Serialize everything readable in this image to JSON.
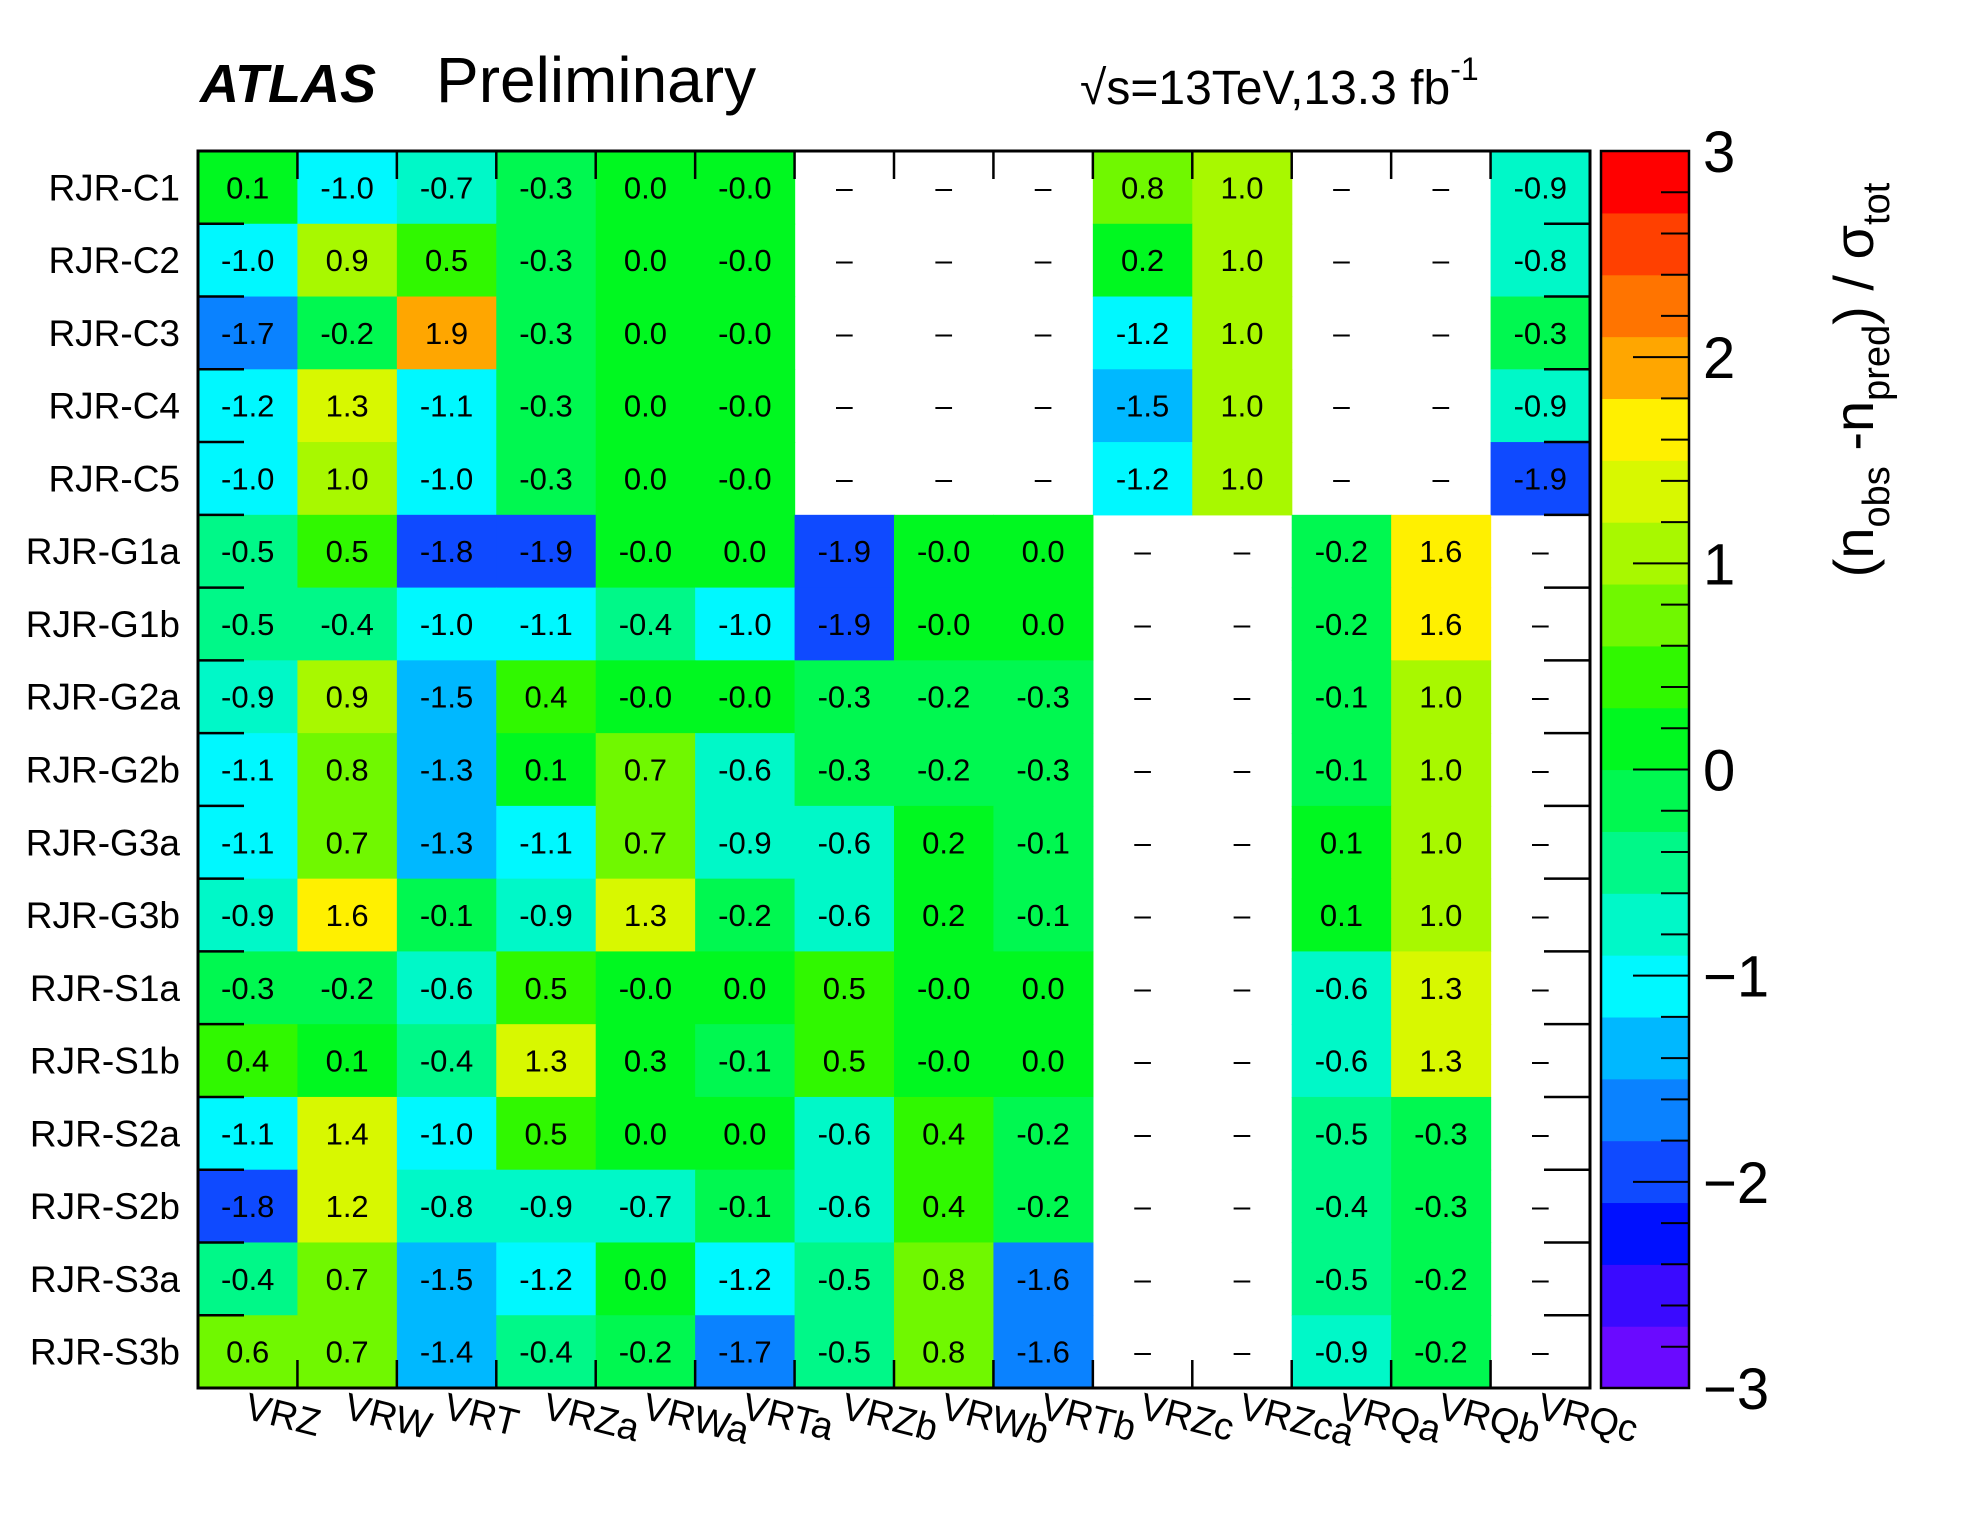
{
  "header": {
    "experiment": "ATLAS",
    "status": "Preliminary",
    "sqrt": "√",
    "energy_prefix": "s",
    "energy_text": "=13TeV,13.3 fb",
    "energy_sup": "-1"
  },
  "chart_data": {
    "type": "heatmap",
    "title": "",
    "xlabel": "",
    "ylabel": "",
    "colorbar_label": {
      "open": "(n",
      "obs": "obs",
      "minus": " -n",
      "pred": "pred",
      "close": ") / σ",
      "tot": "tot"
    },
    "colorbar_range": [
      -3,
      3
    ],
    "colorbar_ticks": [
      {
        "value": 3,
        "label": "3"
      },
      {
        "value": 2,
        "label": "2"
      },
      {
        "value": 1,
        "label": "1"
      },
      {
        "value": 0,
        "label": "0"
      },
      {
        "value": -1,
        "label": "−1"
      },
      {
        "value": -2,
        "label": "−2"
      },
      {
        "value": -3,
        "label": "−3"
      }
    ],
    "empty_symbol": "–",
    "x_categories": [
      "VRZ",
      "VRW",
      "VRT",
      "VRZa",
      "VRWa",
      "VRTa",
      "VRZb",
      "VRWb",
      "VRTb",
      "VRZc",
      "VRZca",
      "VRQa",
      "VRQb",
      "VRQc"
    ],
    "y_categories": [
      "RJR-C1",
      "RJR-C2",
      "RJR-C3",
      "RJR-C4",
      "RJR-C5",
      "RJR-G1a",
      "RJR-G1b",
      "RJR-G2a",
      "RJR-G2b",
      "RJR-G3a",
      "RJR-G3b",
      "RJR-S1a",
      "RJR-S1b",
      "RJR-S2a",
      "RJR-S2b",
      "RJR-S3a",
      "RJR-S3b"
    ],
    "values": [
      [
        "0.1",
        "-1.0",
        "-0.7",
        "-0.3",
        "0.0",
        "-0.0",
        null,
        null,
        null,
        "0.8",
        "1.0",
        null,
        null,
        "-0.9"
      ],
      [
        "-1.0",
        "0.9",
        "0.5",
        "-0.3",
        "0.0",
        "-0.0",
        null,
        null,
        null,
        "0.2",
        "1.0",
        null,
        null,
        "-0.8"
      ],
      [
        "-1.7",
        "-0.2",
        "1.9",
        "-0.3",
        "0.0",
        "-0.0",
        null,
        null,
        null,
        "-1.2",
        "1.0",
        null,
        null,
        "-0.3"
      ],
      [
        "-1.2",
        "1.3",
        "-1.1",
        "-0.3",
        "0.0",
        "-0.0",
        null,
        null,
        null,
        "-1.5",
        "1.0",
        null,
        null,
        "-0.9"
      ],
      [
        "-1.0",
        "1.0",
        "-1.0",
        "-0.3",
        "0.0",
        "-0.0",
        null,
        null,
        null,
        "-1.2",
        "1.0",
        null,
        null,
        "-1.9"
      ],
      [
        "-0.5",
        "0.5",
        "-1.8",
        "-1.9",
        "-0.0",
        "0.0",
        "-1.9",
        "-0.0",
        "0.0",
        null,
        null,
        "-0.2",
        "1.6",
        null
      ],
      [
        "-0.5",
        "-0.4",
        "-1.0",
        "-1.1",
        "-0.4",
        "-1.0",
        "-1.9",
        "-0.0",
        "0.0",
        null,
        null,
        "-0.2",
        "1.6",
        null
      ],
      [
        "-0.9",
        "0.9",
        "-1.5",
        "0.4",
        "-0.0",
        "-0.0",
        "-0.3",
        "-0.2",
        "-0.3",
        null,
        null,
        "-0.1",
        "1.0",
        null
      ],
      [
        "-1.1",
        "0.8",
        "-1.3",
        "0.1",
        "0.7",
        "-0.6",
        "-0.3",
        "-0.2",
        "-0.3",
        null,
        null,
        "-0.1",
        "1.0",
        null
      ],
      [
        "-1.1",
        "0.7",
        "-1.3",
        "-1.1",
        "0.7",
        "-0.9",
        "-0.6",
        "0.2",
        "-0.1",
        null,
        null,
        "0.1",
        "1.0",
        null
      ],
      [
        "-0.9",
        "1.6",
        "-0.1",
        "-0.9",
        "1.3",
        "-0.2",
        "-0.6",
        "0.2",
        "-0.1",
        null,
        null,
        "0.1",
        "1.0",
        null
      ],
      [
        "-0.3",
        "-0.2",
        "-0.6",
        "0.5",
        "-0.0",
        "0.0",
        "0.5",
        "-0.0",
        "0.0",
        null,
        null,
        "-0.6",
        "1.3",
        null
      ],
      [
        "0.4",
        "0.1",
        "-0.4",
        "1.3",
        "0.3",
        "-0.1",
        "0.5",
        "-0.0",
        "0.0",
        null,
        null,
        "-0.6",
        "1.3",
        null
      ],
      [
        "-1.1",
        "1.4",
        "-1.0",
        "0.5",
        "0.0",
        "0.0",
        "-0.6",
        "0.4",
        "-0.2",
        null,
        null,
        "-0.5",
        "-0.3",
        null
      ],
      [
        "-1.8",
        "1.2",
        "-0.8",
        "-0.9",
        "-0.7",
        "-0.1",
        "-0.6",
        "0.4",
        "-0.2",
        null,
        null,
        "-0.4",
        "-0.3",
        null
      ],
      [
        "-0.4",
        "0.7",
        "-1.5",
        "-1.2",
        "0.0",
        "-1.2",
        "-0.5",
        "0.8",
        "-1.6",
        null,
        null,
        "-0.5",
        "-0.2",
        null
      ],
      [
        "0.6",
        "0.7",
        "-1.4",
        "-0.4",
        "-0.2",
        "-1.7",
        "-0.5",
        "0.8",
        "-1.6",
        null,
        null,
        "-0.9",
        "-0.2",
        null
      ]
    ],
    "palette": [
      "#6a0aff",
      "#3a0aff",
      "#0010ff",
      "#0f4aff",
      "#0a82ff",
      "#00b8ff",
      "#00f8ff",
      "#00f8c8",
      "#00f888",
      "#00f850",
      "#00f820",
      "#30f800",
      "#70f800",
      "#a8f800",
      "#d8f800",
      "#fff000",
      "#ffa600",
      "#ff7400",
      "#ff4000",
      "#ff0000"
    ]
  }
}
